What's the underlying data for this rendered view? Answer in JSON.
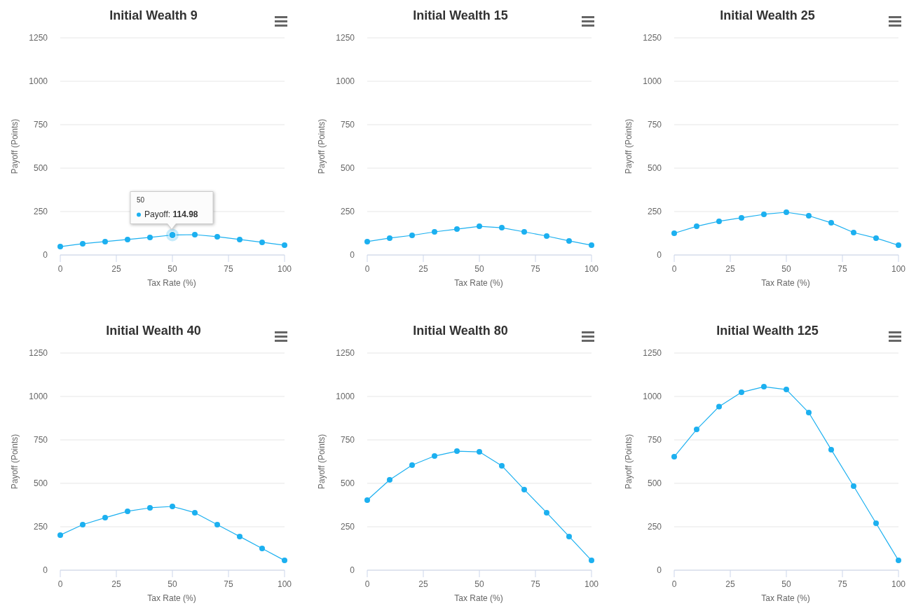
{
  "chart_data": [
    {
      "type": "line",
      "title": "Initial Wealth 9",
      "xlabel": "Tax Rate (%)",
      "ylabel": "Payoff (Points)",
      "x": [
        0,
        10,
        20,
        30,
        40,
        50,
        60,
        70,
        80,
        90,
        100
      ],
      "xlim": [
        0,
        100
      ],
      "xticks": [
        0,
        25,
        50,
        75,
        100
      ],
      "ylim": [
        0,
        1250
      ],
      "yticks": [
        0,
        250,
        500,
        750,
        1000,
        1250
      ],
      "grid": "y",
      "marker": "circle",
      "line_style": "solid",
      "series": [
        {
          "color": "#1cb0f0",
          "values": [
            48,
            65,
            77,
            89,
            101,
            114.98,
            117,
            105,
            89,
            73,
            56
          ]
        }
      ],
      "annotations": [
        "50",
        {
          "text": "Payoff: 114.98",
          "x": 50,
          "y": 114.98
        }
      ]
    },
    {
      "type": "line",
      "title": "Initial Wealth 15",
      "xlabel": "Tax Rate (%)",
      "ylabel": "Payoff (Points)",
      "x": [
        0,
        10,
        20,
        30,
        40,
        50,
        60,
        70,
        80,
        90,
        100
      ],
      "xlim": [
        0,
        100
      ],
      "xticks": [
        0,
        25,
        50,
        75,
        100
      ],
      "ylim": [
        0,
        1250
      ],
      "yticks": [
        0,
        250,
        500,
        750,
        1000,
        1250
      ],
      "grid": "y",
      "marker": "circle",
      "line_style": "solid",
      "series": [
        {
          "color": "#1cb0f0",
          "values": [
            77,
            97,
            113,
            133,
            149,
            165,
            157,
            133,
            109,
            81,
            56
          ]
        }
      ]
    },
    {
      "type": "line",
      "title": "Initial Wealth 25",
      "xlabel": "Tax Rate (%)",
      "ylabel": "Payoff (Points)",
      "x": [
        0,
        10,
        20,
        30,
        40,
        50,
        60,
        70,
        80,
        90,
        100
      ],
      "xlim": [
        0,
        100
      ],
      "xticks": [
        0,
        25,
        50,
        75,
        100
      ],
      "ylim": [
        0,
        1250
      ],
      "yticks": [
        0,
        250,
        500,
        750,
        1000,
        1250
      ],
      "grid": "y",
      "marker": "circle",
      "line_style": "solid",
      "series": [
        {
          "color": "#1cb0f0",
          "values": [
            125,
            165,
            194,
            214,
            234,
            246,
            226,
            185,
            129,
            97,
            56
          ]
        }
      ]
    },
    {
      "type": "line",
      "title": "Initial Wealth 40",
      "xlabel": "Tax Rate (%)",
      "ylabel": "Payoff (Points)",
      "x": [
        0,
        10,
        20,
        30,
        40,
        50,
        60,
        70,
        80,
        90,
        100
      ],
      "xlim": [
        0,
        100
      ],
      "xticks": [
        0,
        25,
        50,
        75,
        100
      ],
      "ylim": [
        0,
        1250
      ],
      "yticks": [
        0,
        250,
        500,
        750,
        1000,
        1250
      ],
      "grid": "y",
      "marker": "circle",
      "line_style": "solid",
      "series": [
        {
          "color": "#1cb0f0",
          "values": [
            202,
            262,
            302,
            339,
            359,
            367,
            331,
            262,
            194,
            125,
            56
          ]
        }
      ]
    },
    {
      "type": "line",
      "title": "Initial Wealth 80",
      "xlabel": "Tax Rate (%)",
      "ylabel": "Payoff (Points)",
      "x": [
        0,
        10,
        20,
        30,
        40,
        50,
        60,
        70,
        80,
        90,
        100
      ],
      "xlim": [
        0,
        100
      ],
      "xticks": [
        0,
        25,
        50,
        75,
        100
      ],
      "ylim": [
        0,
        1250
      ],
      "yticks": [
        0,
        250,
        500,
        750,
        1000,
        1250
      ],
      "grid": "y",
      "marker": "circle",
      "line_style": "solid",
      "series": [
        {
          "color": "#1cb0f0",
          "values": [
            403,
            520,
            605,
            657,
            685,
            681,
            601,
            464,
            331,
            194,
            56
          ]
        }
      ]
    },
    {
      "type": "line",
      "title": "Initial Wealth 125",
      "xlabel": "Tax Rate (%)",
      "ylabel": "Payoff (Points)",
      "x": [
        0,
        10,
        20,
        30,
        40,
        50,
        60,
        70,
        80,
        90,
        100
      ],
      "xlim": [
        0,
        100
      ],
      "xticks": [
        0,
        25,
        50,
        75,
        100
      ],
      "ylim": [
        0,
        1250
      ],
      "yticks": [
        0,
        250,
        500,
        750,
        1000,
        1250
      ],
      "grid": "y",
      "marker": "circle",
      "line_style": "solid",
      "series": [
        {
          "color": "#1cb0f0",
          "values": [
            653,
            810,
            942,
            1024,
            1056,
            1040,
            907,
            694,
            484,
            270,
            56
          ]
        }
      ]
    }
  ]
}
